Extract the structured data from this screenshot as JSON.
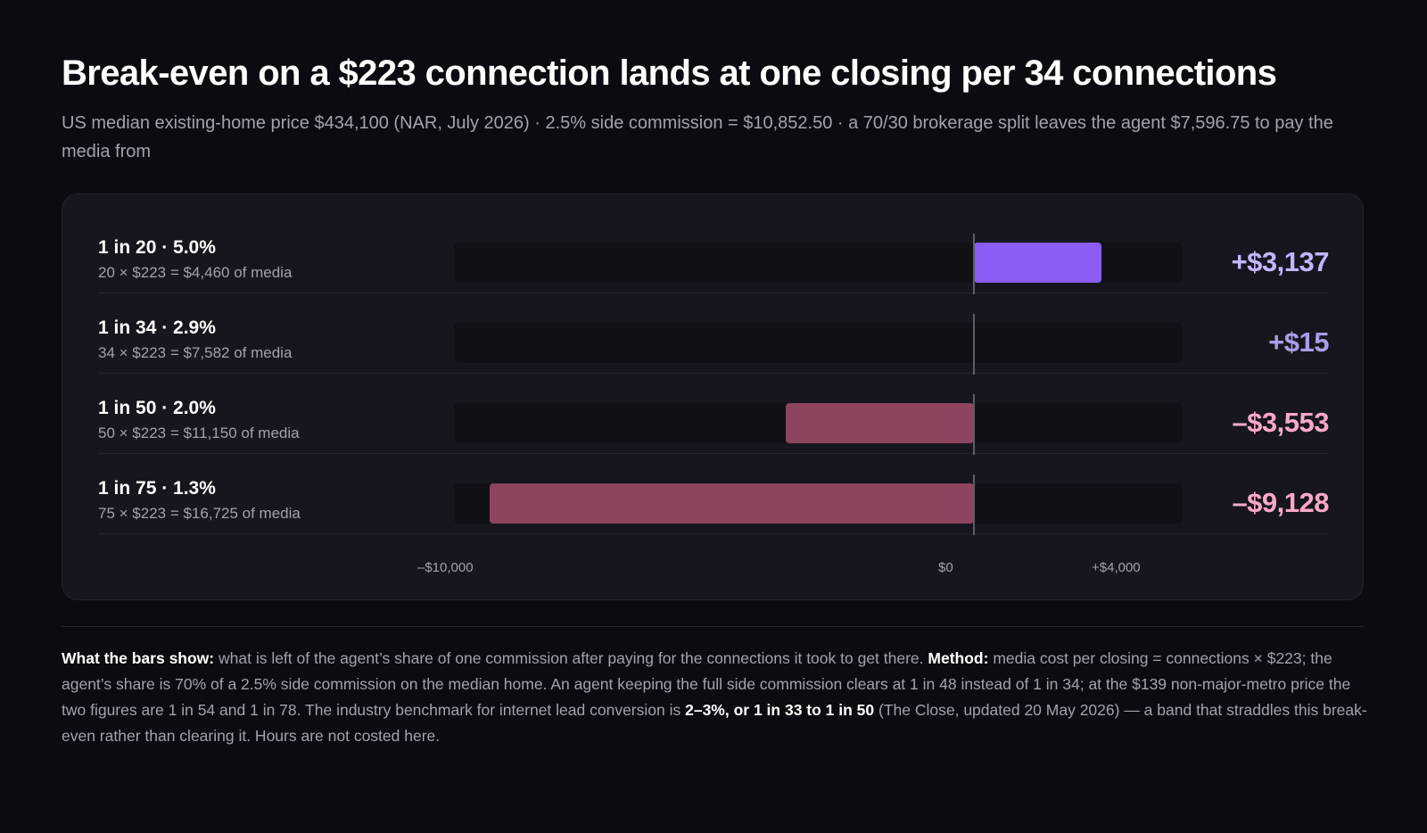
{
  "title": "Break-even on a $223 connection lands at one closing per 34 connections",
  "subtitle": "US median existing-home price $434,100 (NAR, July 2026) · 2.5% side commission = $10,852.50 · a 70/30 brokerage split leaves the agent $7,596.75 to pay the media from",
  "colors": {
    "positive_bar": "#8b5cf6",
    "negative_bar": "#8c4461",
    "positive_text_strong": "#c4b5fd",
    "positive_text_soft": "#a79ee8",
    "negative_text": "#f9a8c9"
  },
  "chart_data": {
    "type": "bar",
    "orientation": "horizontal",
    "categories": [
      "1 in 20 · 5.0%",
      "1 in 34 · 2.9%",
      "1 in 50 · 2.0%",
      "1 in 75 · 1.3%"
    ],
    "rows": [
      {
        "label": "1 in 20 · 5.0%",
        "sub": "20 × $223 = $4,460 of media",
        "value": 3137,
        "value_label": "+$3,137"
      },
      {
        "label": "1 in 34 · 2.9%",
        "sub": "34 × $223 = $7,582 of media",
        "value": 15,
        "value_label": "+$15"
      },
      {
        "label": "1 in 50 · 2.0%",
        "sub": "50 × $223 = $11,150 of media",
        "value": -3553,
        "value_label": "–$3,553"
      },
      {
        "label": "1 in 75 · 1.3%",
        "sub": "75 × $223 = $16,725 of media",
        "value": -9128,
        "value_label": "–$9,128"
      }
    ],
    "xlim": [
      -10000,
      4000
    ],
    "x_ticks": [
      {
        "value": -10000,
        "label": "–$10,000"
      },
      {
        "value": 0,
        "label": "$0"
      },
      {
        "value": 4000,
        "label": "+$4,000"
      }
    ]
  },
  "footnote": {
    "what_label": "What the bars show:",
    "what_text": " what is left of the agent’s share of one commission after paying for the connections it took to get there. ",
    "method_label": "Method:",
    "method_text": " media cost per closing = connections × $223; the agent’s share is 70% of a 2.5% side commission on the median home. An agent keeping the full side commission clears at 1 in 48 instead of 1 in 34; at the $139 non-major-metro price the two figures are 1 in 54 and 1 in 78. The industry benchmark for internet lead conversion is ",
    "benchmark": "2–3%, or 1 in 33 to 1 in 50",
    "tail_text": " (The Close, updated 20 May 2026) — a band that straddles this break-even rather than clearing it. Hours are not costed here."
  }
}
